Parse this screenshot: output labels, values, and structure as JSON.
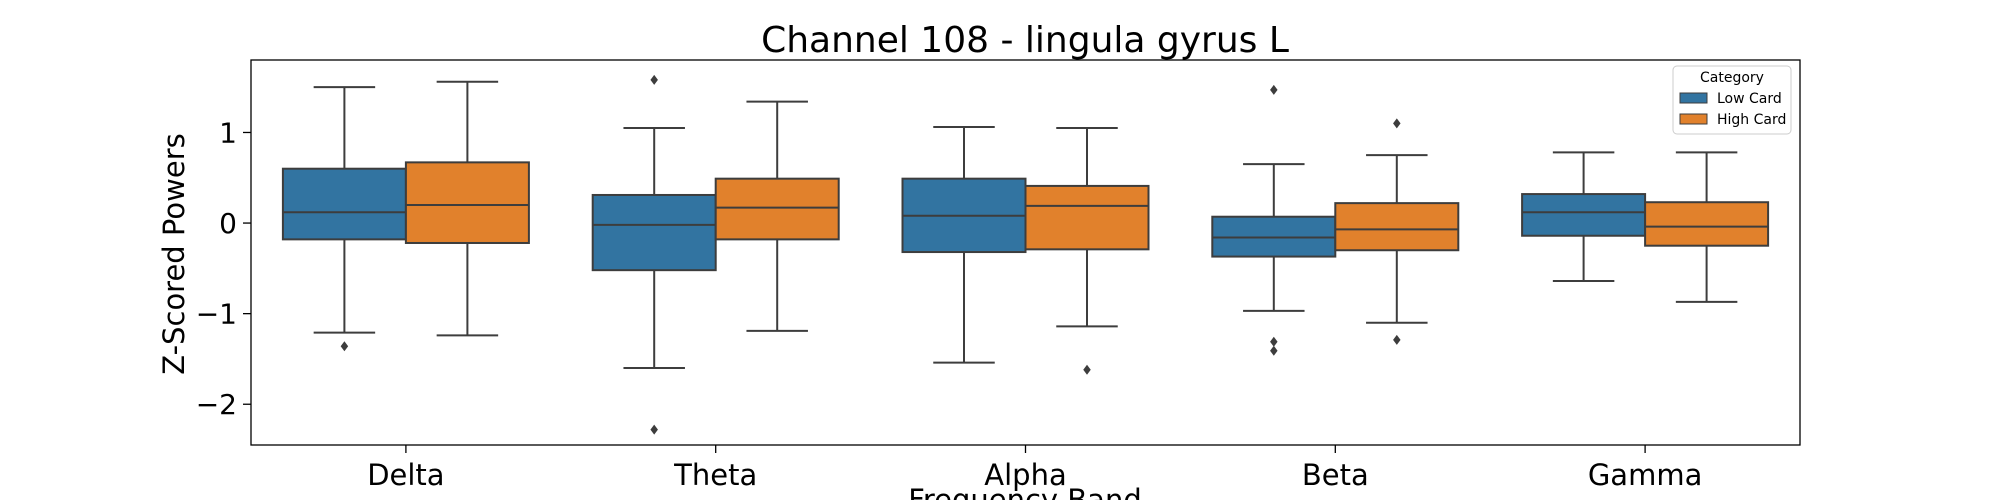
{
  "chart_data": {
    "type": "box",
    "title": "Channel 108 - lingula gyrus L",
    "xlabel": "Frequency Band",
    "ylabel": "Z-Scored Powers",
    "ylim": [
      -2.45,
      1.8
    ],
    "yticks": [
      1,
      0,
      -1,
      -2
    ],
    "ytick_labels": [
      "1",
      "0",
      "−1",
      "−2"
    ],
    "categories": [
      "Delta",
      "Theta",
      "Alpha",
      "Beta",
      "Gamma"
    ],
    "legend": {
      "title": "Category",
      "position": "top-right"
    },
    "grid": false,
    "series": [
      {
        "name": "Low Card",
        "color": "#3274a1",
        "boxes": [
          {
            "whisker_low": -1.21,
            "q1": -0.18,
            "median": 0.12,
            "q3": 0.6,
            "whisker_high": 1.5,
            "outliers": [
              -1.36
            ]
          },
          {
            "whisker_low": -1.6,
            "q1": -0.52,
            "median": -0.02,
            "q3": 0.31,
            "whisker_high": 1.05,
            "outliers": [
              1.58,
              -2.28
            ]
          },
          {
            "whisker_low": -1.54,
            "q1": -0.32,
            "median": 0.08,
            "q3": 0.49,
            "whisker_high": 1.06,
            "outliers": []
          },
          {
            "whisker_low": -0.97,
            "q1": -0.37,
            "median": -0.16,
            "q3": 0.07,
            "whisker_high": 0.65,
            "outliers": [
              1.47,
              -1.31,
              -1.41
            ]
          },
          {
            "whisker_low": -0.64,
            "q1": -0.14,
            "median": 0.12,
            "q3": 0.32,
            "whisker_high": 0.78,
            "outliers": []
          }
        ]
      },
      {
        "name": "High Card",
        "color": "#e1812c",
        "boxes": [
          {
            "whisker_low": -1.24,
            "q1": -0.22,
            "median": 0.2,
            "q3": 0.67,
            "whisker_high": 1.56,
            "outliers": []
          },
          {
            "whisker_low": -1.19,
            "q1": -0.18,
            "median": 0.17,
            "q3": 0.49,
            "whisker_high": 1.34,
            "outliers": []
          },
          {
            "whisker_low": -1.14,
            "q1": -0.29,
            "median": 0.19,
            "q3": 0.41,
            "whisker_high": 1.05,
            "outliers": [
              -1.62
            ]
          },
          {
            "whisker_low": -1.1,
            "q1": -0.3,
            "median": -0.07,
            "q3": 0.22,
            "whisker_high": 0.75,
            "outliers": [
              1.1,
              -1.29
            ]
          },
          {
            "whisker_low": -0.87,
            "q1": -0.25,
            "median": -0.04,
            "q3": 0.23,
            "whisker_high": 0.78,
            "outliers": []
          }
        ]
      }
    ]
  }
}
